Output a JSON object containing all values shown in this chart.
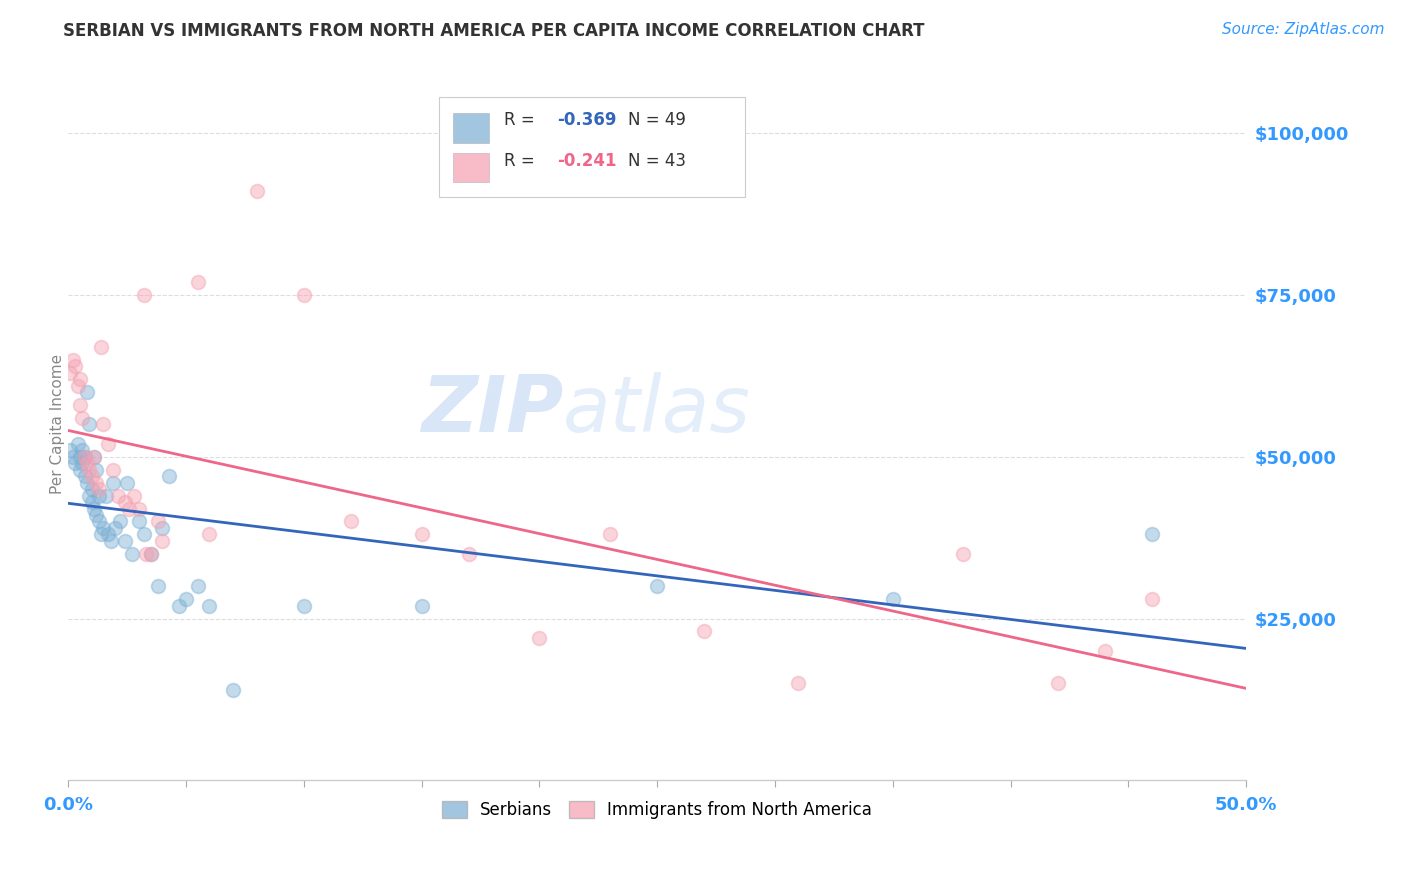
{
  "title": "SERBIAN VS IMMIGRANTS FROM NORTH AMERICA PER CAPITA INCOME CORRELATION CHART",
  "source": "Source: ZipAtlas.com",
  "ylabel": "Per Capita Income",
  "xlim": [
    0.0,
    0.5
  ],
  "ylim": [
    0,
    110000
  ],
  "yticks": [
    25000,
    50000,
    75000,
    100000
  ],
  "ytick_labels": [
    "$25,000",
    "$50,000",
    "$75,000",
    "$100,000"
  ],
  "background_color": "#ffffff",
  "watermark_text": "ZIP",
  "watermark_text2": "atlas",
  "legend_R1": "-0.369",
  "legend_N1": "49",
  "legend_R2": "-0.241",
  "legend_N2": "43",
  "blue_color": "#7bafd4",
  "pink_color": "#f4a0b0",
  "line_blue": "#3366bb",
  "line_pink": "#ee6688",
  "label_color": "#3399ff",
  "title_color": "#333333",
  "ylabel_color": "#888888",
  "grid_color": "#dddddd",
  "serbians_x": [
    0.001,
    0.002,
    0.003,
    0.004,
    0.005,
    0.005,
    0.006,
    0.006,
    0.007,
    0.007,
    0.008,
    0.008,
    0.009,
    0.009,
    0.01,
    0.01,
    0.011,
    0.011,
    0.012,
    0.012,
    0.013,
    0.013,
    0.014,
    0.015,
    0.016,
    0.017,
    0.018,
    0.019,
    0.02,
    0.022,
    0.024,
    0.025,
    0.027,
    0.03,
    0.032,
    0.035,
    0.038,
    0.04,
    0.043,
    0.047,
    0.05,
    0.055,
    0.06,
    0.07,
    0.1,
    0.15,
    0.25,
    0.35,
    0.46
  ],
  "serbians_y": [
    51000,
    50000,
    49000,
    52000,
    50000,
    48000,
    51000,
    49000,
    50000,
    47000,
    60000,
    46000,
    44000,
    55000,
    43000,
    45000,
    42000,
    50000,
    41000,
    48000,
    40000,
    44000,
    38000,
    39000,
    44000,
    38000,
    37000,
    46000,
    39000,
    40000,
    37000,
    46000,
    35000,
    40000,
    38000,
    35000,
    30000,
    39000,
    47000,
    27000,
    28000,
    30000,
    27000,
    14000,
    27000,
    27000,
    30000,
    28000,
    38000
  ],
  "immigrants_x": [
    0.001,
    0.002,
    0.003,
    0.004,
    0.005,
    0.005,
    0.006,
    0.007,
    0.008,
    0.009,
    0.01,
    0.011,
    0.012,
    0.013,
    0.014,
    0.015,
    0.017,
    0.019,
    0.021,
    0.024,
    0.026,
    0.028,
    0.03,
    0.032,
    0.033,
    0.035,
    0.038,
    0.04,
    0.055,
    0.06,
    0.08,
    0.1,
    0.12,
    0.15,
    0.17,
    0.2,
    0.23,
    0.27,
    0.31,
    0.38,
    0.42,
    0.44,
    0.46
  ],
  "immigrants_y": [
    63000,
    65000,
    64000,
    61000,
    62000,
    58000,
    56000,
    50000,
    49000,
    48000,
    47000,
    50000,
    46000,
    45000,
    67000,
    55000,
    52000,
    48000,
    44000,
    43000,
    42000,
    44000,
    42000,
    75000,
    35000,
    35000,
    40000,
    37000,
    77000,
    38000,
    91000,
    75000,
    40000,
    38000,
    35000,
    22000,
    38000,
    23000,
    15000,
    35000,
    15000,
    20000,
    28000
  ]
}
